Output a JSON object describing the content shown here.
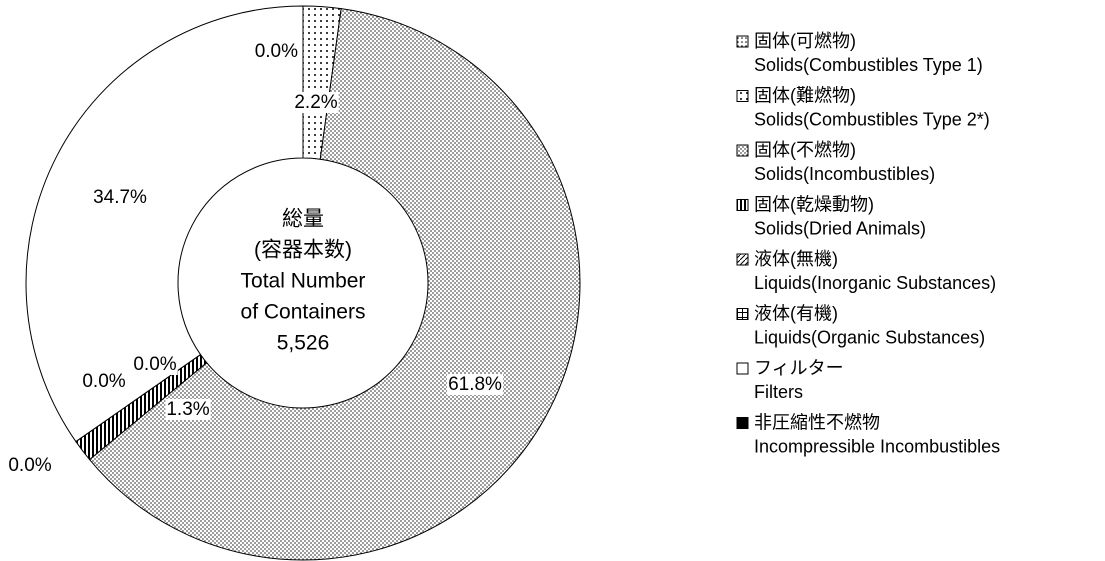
{
  "chart_data": {
    "type": "donut",
    "categories": [
      "固体(可燃物)",
      "固体(難燃物)",
      "固体(不燃物)",
      "固体(乾燥動物)",
      "液体(無機)",
      "液体(有機)",
      "フィルター",
      "非圧縮性不燃物"
    ],
    "categories_en": [
      "Solids(Combustibles Type 1)",
      "Solids(Combustibles Type 2*)",
      "Solids(Incombustibles)",
      "Solids(Dried Animals)",
      "Liquids(Inorganic Substances)",
      "Liquids(Organic Substances)",
      "Filters",
      "Incompressible Incombustibles"
    ],
    "values": [
      0.0,
      2.2,
      61.8,
      1.3,
      0.0,
      0.0,
      34.7,
      0.0
    ],
    "value_labels": [
      "0.0%",
      "2.2%",
      "61.8%",
      "1.3%",
      "0.0%",
      "0.0%",
      "34.7%",
      "0.0%"
    ],
    "patterns": [
      "fine-dots",
      "sparse-dots",
      "dense-dots",
      "vertical-stripes",
      "diagonal",
      "grid",
      "white",
      "black"
    ],
    "center_label": [
      "総量",
      "(容器本数)",
      "Total Number",
      "of Containers"
    ],
    "total": {
      "value": 5526,
      "label": "5,526"
    }
  }
}
